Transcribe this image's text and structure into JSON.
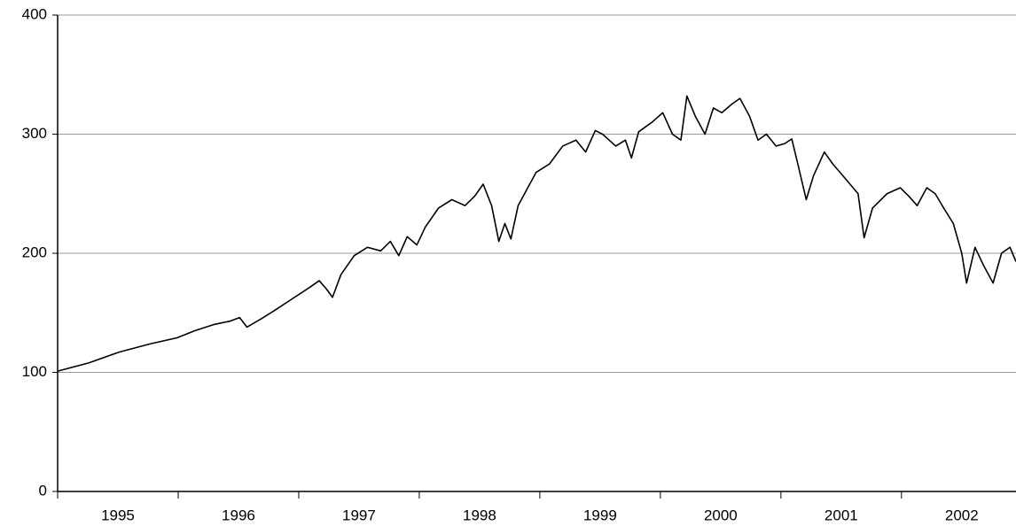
{
  "chart_data": {
    "type": "line",
    "categories": [
      "1995",
      "1996",
      "1997",
      "1998",
      "1999",
      "2000",
      "2001",
      "2002"
    ],
    "x": [
      1995.0,
      1995.26,
      1995.51,
      1995.77,
      1995.99,
      1996.14,
      1996.29,
      1996.43,
      1996.51,
      1996.57,
      1996.69,
      1996.8,
      1996.95,
      1997.1,
      1997.17,
      1997.23,
      1997.28,
      1997.35,
      1997.46,
      1997.57,
      1997.68,
      1997.76,
      1997.83,
      1997.9,
      1997.98,
      1998.05,
      1998.16,
      1998.27,
      1998.38,
      1998.46,
      1998.53,
      1998.6,
      1998.66,
      1998.71,
      1998.76,
      1998.82,
      1998.9,
      1998.97,
      1999.08,
      1999.19,
      1999.3,
      1999.38,
      1999.46,
      1999.52,
      1999.63,
      1999.71,
      1999.76,
      1999.82,
      1999.93,
      2000.02,
      2000.1,
      2000.17,
      2000.22,
      2000.29,
      2000.37,
      2000.44,
      2000.51,
      2000.59,
      2000.66,
      2000.74,
      2000.81,
      2000.88,
      2000.96,
      2001.03,
      2001.09,
      2001.14,
      2001.21,
      2001.27,
      2001.36,
      2001.43,
      2001.54,
      2001.64,
      2001.69,
      2001.76,
      2001.88,
      2001.99,
      2002.06,
      2002.13,
      2002.21,
      2002.28,
      2002.35,
      2002.43,
      2002.5,
      2002.54,
      2002.61,
      2002.68,
      2002.76,
      2002.83,
      2002.9,
      2002.95
    ],
    "series": [
      {
        "color": "#000000",
        "values": [
          101,
          108,
          117,
          124,
          129,
          135,
          140,
          143,
          146,
          138,
          145,
          152,
          162,
          172,
          177,
          170,
          163,
          182,
          198,
          205,
          202,
          210,
          198,
          214,
          207,
          222,
          238,
          245,
          240,
          248,
          258,
          240,
          210,
          225,
          212,
          240,
          255,
          268,
          275,
          290,
          295,
          285,
          303,
          300,
          290,
          295,
          280,
          302,
          310,
          318,
          300,
          295,
          332,
          315,
          300,
          322,
          318,
          325,
          330,
          315,
          295,
          300,
          290,
          292,
          296,
          275,
          245,
          265,
          285,
          275,
          262,
          250,
          213,
          238,
          250,
          255,
          248,
          240,
          255,
          250,
          238,
          225,
          200,
          175,
          205,
          190,
          175,
          200,
          205,
          193
        ]
      }
    ],
    "xlim": [
      1995,
      2002.95
    ],
    "xticks": [
      1995,
      1996,
      1997,
      1998,
      1999,
      2000,
      2001,
      2002
    ],
    "ylim": [
      0,
      400
    ],
    "yticks": [
      0,
      100,
      200,
      300,
      400
    ],
    "grid": true
  }
}
